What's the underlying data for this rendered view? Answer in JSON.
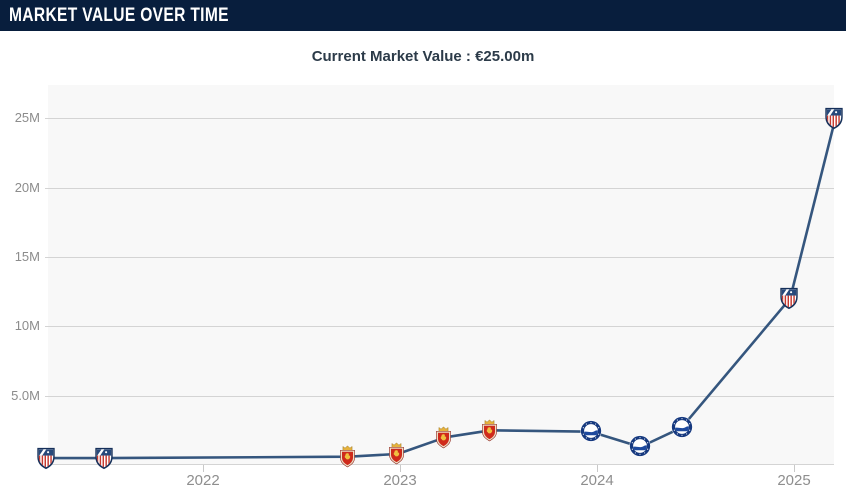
{
  "header": {
    "title": "MARKET VALUE OVER TIME"
  },
  "subtitle": {
    "full": "Current Market Value : €25.00m",
    "label": "Current Market Value",
    "value": "€25.00m"
  },
  "clubs": {
    "atletico-madrid": "Atlético de Madrid",
    "real-zaragoza": "Real Zaragoza",
    "alaves": "Deportivo Alavés"
  },
  "chart_data": {
    "type": "line",
    "title": "Market value over time",
    "xlabel": "",
    "ylabel": "",
    "grid": true,
    "legend": false,
    "line_color": "#35567e",
    "plot_background": "#f8f8f8",
    "header_background": "#081e3d",
    "xlim": [
      2021.2,
      2025.25
    ],
    "ylim": [
      0,
      27.4
    ],
    "x_ticks": [
      {
        "t": 2022,
        "label": "2022"
      },
      {
        "t": 2023,
        "label": "2023"
      },
      {
        "t": 2024,
        "label": "2024"
      },
      {
        "t": 2025,
        "label": "2025"
      }
    ],
    "y_ticks": [
      {
        "value": 5,
        "label": "5.0M"
      },
      {
        "value": 10,
        "label": "10M"
      },
      {
        "value": 15,
        "label": "15M"
      },
      {
        "value": 20,
        "label": "20M"
      },
      {
        "value": 25,
        "label": "25M"
      }
    ],
    "points": [
      {
        "date": "Mar 2021",
        "t": 2021.21,
        "value_m": 0.5,
        "value_label": "€0.5m",
        "club_key": "atletico-madrid",
        "club": "Atlético de Madrid"
      },
      {
        "date": "Jul 2021",
        "t": 2021.5,
        "value_m": 0.5,
        "value_label": "€0.5m",
        "club_key": "atletico-madrid",
        "club": "Atlético de Madrid"
      },
      {
        "date": "Oct 2022",
        "t": 2022.74,
        "value_m": 0.6,
        "value_label": "€0.6m",
        "club_key": "real-zaragoza",
        "club": "Real Zaragoza"
      },
      {
        "date": "Dec 2022",
        "t": 2022.99,
        "value_m": 0.8,
        "value_label": "€0.8m",
        "club_key": "real-zaragoza",
        "club": "Real Zaragoza"
      },
      {
        "date": "Mar 2023",
        "t": 2023.23,
        "value_m": 2.0,
        "value_label": "€2.0m",
        "club_key": "real-zaragoza",
        "club": "Real Zaragoza"
      },
      {
        "date": "Jun 2023",
        "t": 2023.46,
        "value_m": 2.5,
        "value_label": "€2.5m",
        "club_key": "real-zaragoza",
        "club": "Real Zaragoza"
      },
      {
        "date": "Dec 2023",
        "t": 2023.97,
        "value_m": 2.4,
        "value_label": "€2.4m",
        "club_key": "alaves",
        "club": "Deportivo Alavés"
      },
      {
        "date": "Mar 2024",
        "t": 2024.22,
        "value_m": 1.3,
        "value_label": "€1.3m",
        "club_key": "alaves",
        "club": "Deportivo Alavés"
      },
      {
        "date": "Jun 2024",
        "t": 2024.43,
        "value_m": 2.7,
        "value_label": "€2.7m",
        "club_key": "alaves",
        "club": "Deportivo Alavés"
      },
      {
        "date": "Dec 2024",
        "t": 2024.98,
        "value_m": 12.0,
        "value_label": "€12.0m",
        "club_key": "atletico-madrid",
        "club": "Atlético de Madrid"
      },
      {
        "date": "Mar 2025",
        "t": 2025.21,
        "value_m": 25.0,
        "value_label": "€25.0m",
        "club_key": "atletico-madrid",
        "club": "Atlético de Madrid"
      }
    ]
  }
}
